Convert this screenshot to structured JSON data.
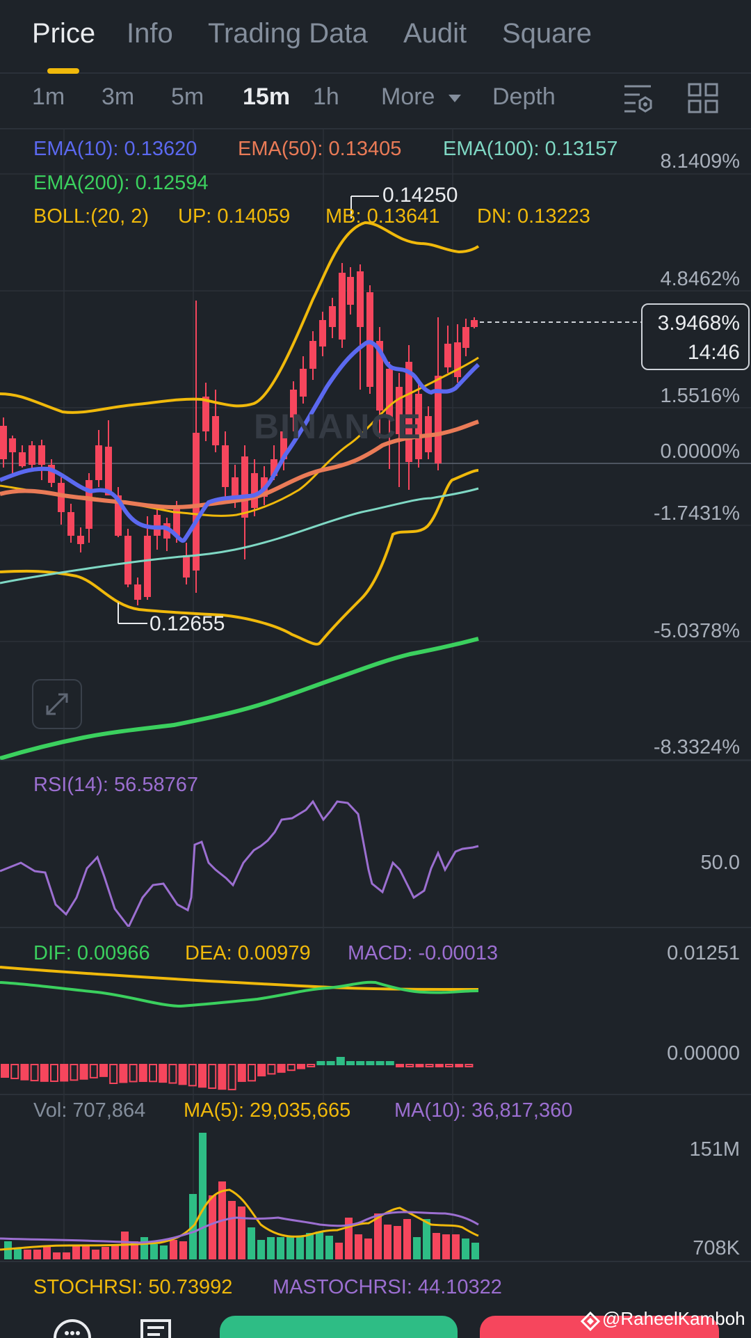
{
  "tabs": [
    "Price",
    "Info",
    "Trading Data",
    "Audit",
    "Square"
  ],
  "intervals": [
    "1m",
    "3m",
    "5m",
    "15m",
    "1h"
  ],
  "more_label": "More",
  "depth_label": "Depth",
  "legend": {
    "ema10": "EMA(10): 0.13620",
    "ema50": "EMA(50): 0.13405",
    "ema100": "EMA(100): 0.13157",
    "ema200": "EMA(200): 0.12594",
    "boll": "BOLL:(20, 2)",
    "up": "UP: 0.14059",
    "mb": "MB: 0.13641",
    "dn": "DN: 0.13223"
  },
  "price_axis": [
    "8.1409%",
    "4.8462%",
    "1.5516%",
    "0.0000%",
    "-1.7431%",
    "-5.0378%",
    "-8.3324%"
  ],
  "current_price_tag": {
    "percent": "3.9468%",
    "countdown": "14:46"
  },
  "high_label": "0.14250",
  "low_label": "0.12655",
  "watermark": "BINANCE",
  "rsi": {
    "label": "RSI(14): 56.58767",
    "axis": "50.0"
  },
  "macd": {
    "dif": "DIF: 0.00966",
    "dea": "DEA: 0.00979",
    "macd": "MACD: -0.00013",
    "axis_top": "0.01251",
    "axis_zero": "0.00000"
  },
  "volume": {
    "vol": "Vol: 707,864",
    "ma5": "MA(5): 29,035,665",
    "ma10": "MA(10): 36,817,360",
    "axis_top": "151M",
    "axis_bottom": "708K"
  },
  "stoch": {
    "stochrsi": "STOCHRSI: 50.73992",
    "mastochrsi": "MASTOCHRSI: 44.10322"
  },
  "credit": "@RaheelKamboh",
  "colors": {
    "background": "#1e2329",
    "up": "#2ebd85",
    "down": "#f6465d",
    "ema10": "#5b69f0",
    "ema50": "#ea7b57",
    "ema100": "#7fd8c4",
    "ema200": "#3bd05e",
    "boll": "#f0b90b",
    "purple": "#9c6fd1"
  }
}
